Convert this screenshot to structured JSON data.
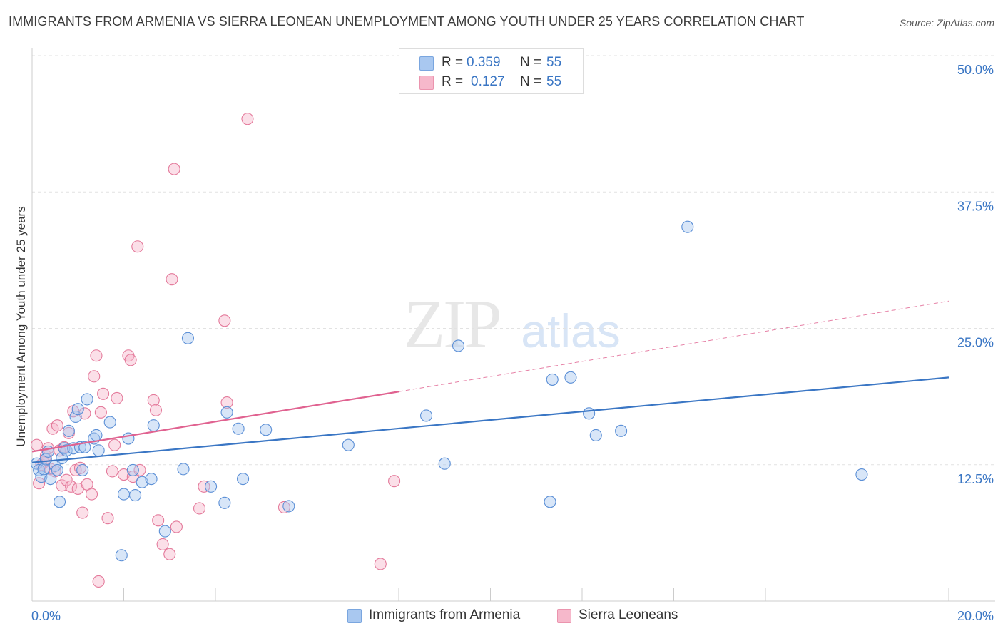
{
  "title": "IMMIGRANTS FROM ARMENIA VS SIERRA LEONEAN UNEMPLOYMENT AMONG YOUTH UNDER 25 YEARS CORRELATION CHART",
  "source": "Source: ZipAtlas.com",
  "watermark": {
    "zip": "ZIP",
    "atlas": "atlas"
  },
  "legend": [
    {
      "r_label": "R =",
      "r_value": "0.359",
      "n_label": "N =",
      "n_value": "55",
      "color": "#a9c8f0"
    },
    {
      "r_label": "R =",
      "r_value": "0.127",
      "n_label": "N =",
      "n_value": "55",
      "color": "#f6b8cb"
    }
  ],
  "bottom_legend": [
    "Immigrants from Armenia",
    "Sierra Leoneans"
  ],
  "chart_data": {
    "type": "scatter",
    "title": "IMMIGRANTS FROM ARMENIA VS SIERRA LEONEAN UNEMPLOYMENT AMONG YOUTH UNDER 25 YEARS CORRELATION CHART",
    "xlabel": "",
    "ylabel": "Unemployment Among Youth under 25 years",
    "xlim": [
      0,
      20
    ],
    "ylim": [
      0,
      50
    ],
    "x_tick_labels": [
      "0.0%",
      "20.0%"
    ],
    "y_ticks": [
      12.5,
      25.0,
      37.5,
      50.0
    ],
    "y_tick_labels": [
      "12.5%",
      "25.0%",
      "37.5%",
      "50.0%"
    ],
    "grid": "horizontal dashed",
    "legend_position": "top-center",
    "series": [
      {
        "name": "Immigrants from Armenia",
        "color": "#a9c8f0",
        "stroke": "#5b8fd6",
        "trend": {
          "x": [
            0,
            20
          ],
          "y": [
            12.7,
            20.5
          ],
          "color": "#3a76c4",
          "style": "solid"
        },
        "points": [
          [
            0.1,
            12.6
          ],
          [
            0.15,
            12.0
          ],
          [
            0.2,
            11.4
          ],
          [
            0.25,
            12.1
          ],
          [
            0.3,
            13.0
          ],
          [
            0.35,
            13.7
          ],
          [
            0.4,
            11.2
          ],
          [
            0.5,
            12.4
          ],
          [
            0.55,
            12.0
          ],
          [
            0.6,
            9.1
          ],
          [
            0.65,
            13.1
          ],
          [
            0.7,
            14.0
          ],
          [
            0.75,
            13.8
          ],
          [
            0.8,
            15.6
          ],
          [
            0.9,
            14.0
          ],
          [
            0.95,
            16.9
          ],
          [
            1.0,
            17.6
          ],
          [
            1.05,
            14.1
          ],
          [
            1.1,
            12.0
          ],
          [
            1.15,
            14.1
          ],
          [
            1.2,
            18.5
          ],
          [
            1.35,
            14.9
          ],
          [
            1.4,
            15.2
          ],
          [
            1.45,
            13.8
          ],
          [
            1.7,
            16.4
          ],
          [
            1.95,
            4.2
          ],
          [
            2.0,
            9.8
          ],
          [
            2.1,
            14.9
          ],
          [
            2.2,
            12.0
          ],
          [
            2.25,
            9.7
          ],
          [
            2.4,
            10.9
          ],
          [
            2.6,
            11.2
          ],
          [
            2.65,
            16.1
          ],
          [
            2.9,
            6.4
          ],
          [
            3.3,
            12.1
          ],
          [
            3.4,
            24.1
          ],
          [
            3.9,
            10.5
          ],
          [
            4.2,
            9.0
          ],
          [
            4.25,
            17.3
          ],
          [
            4.5,
            15.8
          ],
          [
            4.6,
            11.2
          ],
          [
            5.1,
            15.7
          ],
          [
            5.6,
            8.7
          ],
          [
            6.9,
            14.3
          ],
          [
            8.6,
            17.0
          ],
          [
            9.0,
            12.6
          ],
          [
            9.3,
            23.4
          ],
          [
            11.3,
            9.1
          ],
          [
            11.35,
            20.3
          ],
          [
            11.75,
            20.5
          ],
          [
            12.15,
            17.2
          ],
          [
            12.3,
            15.2
          ],
          [
            12.85,
            15.6
          ],
          [
            14.3,
            34.3
          ],
          [
            18.1,
            11.6
          ]
        ]
      },
      {
        "name": "Sierra Leoneans",
        "color": "#f6b8cb",
        "stroke": "#e47a9b",
        "trend": {
          "x": [
            0,
            8.0
          ],
          "y": [
            13.7,
            19.2
          ],
          "color": "#e06290",
          "style": "solid",
          "dashed_extension": {
            "x": [
              8.0,
              20
            ],
            "y": [
              19.2,
              27.5
            ]
          }
        },
        "points": [
          [
            0.1,
            14.3
          ],
          [
            0.15,
            10.8
          ],
          [
            0.2,
            12.5
          ],
          [
            0.25,
            12.7
          ],
          [
            0.3,
            13.3
          ],
          [
            0.35,
            14.0
          ],
          [
            0.4,
            12.1
          ],
          [
            0.45,
            15.8
          ],
          [
            0.5,
            11.9
          ],
          [
            0.55,
            16.1
          ],
          [
            0.6,
            13.8
          ],
          [
            0.65,
            10.6
          ],
          [
            0.7,
            14.1
          ],
          [
            0.75,
            11.1
          ],
          [
            0.8,
            15.4
          ],
          [
            0.85,
            10.5
          ],
          [
            0.9,
            17.4
          ],
          [
            0.95,
            12.0
          ],
          [
            1.0,
            10.3
          ],
          [
            1.05,
            12.2
          ],
          [
            1.1,
            8.1
          ],
          [
            1.15,
            17.2
          ],
          [
            1.2,
            10.7
          ],
          [
            1.3,
            9.8
          ],
          [
            1.35,
            20.6
          ],
          [
            1.4,
            22.5
          ],
          [
            1.45,
            1.8
          ],
          [
            1.5,
            17.3
          ],
          [
            1.55,
            19.0
          ],
          [
            1.65,
            7.6
          ],
          [
            1.75,
            11.9
          ],
          [
            1.8,
            14.3
          ],
          [
            1.85,
            18.6
          ],
          [
            2.0,
            11.6
          ],
          [
            2.1,
            22.5
          ],
          [
            2.15,
            22.1
          ],
          [
            2.2,
            11.4
          ],
          [
            2.3,
            32.5
          ],
          [
            2.35,
            12.0
          ],
          [
            2.65,
            18.4
          ],
          [
            2.7,
            17.5
          ],
          [
            2.75,
            7.4
          ],
          [
            2.85,
            5.2
          ],
          [
            3.0,
            4.3
          ],
          [
            3.05,
            29.5
          ],
          [
            3.1,
            39.6
          ],
          [
            3.15,
            6.8
          ],
          [
            3.65,
            8.5
          ],
          [
            3.75,
            10.5
          ],
          [
            4.2,
            25.7
          ],
          [
            4.25,
            18.2
          ],
          [
            4.7,
            44.2
          ],
          [
            5.5,
            8.6
          ],
          [
            7.6,
            3.4
          ],
          [
            7.9,
            11.0
          ]
        ]
      }
    ]
  }
}
